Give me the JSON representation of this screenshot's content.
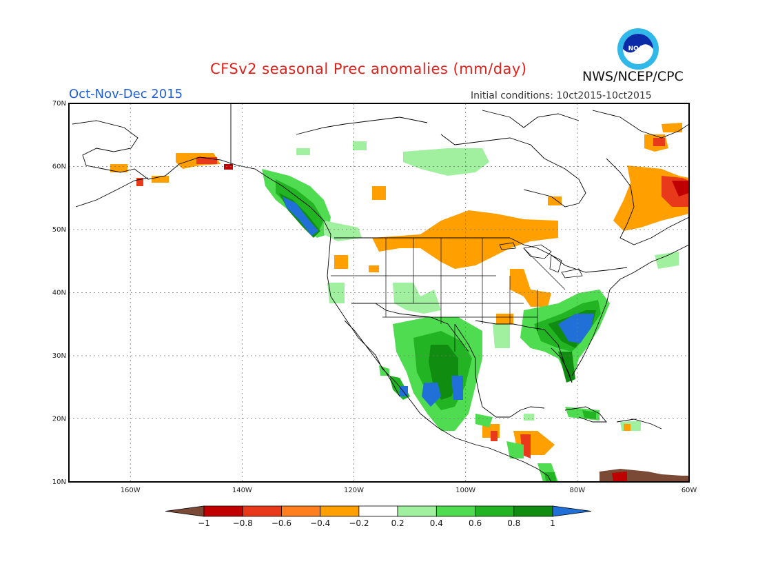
{
  "header": {
    "title": "CFSv2 seasonal Prec anomalies (mm/day)",
    "agency": "NWS/NCEP/CPC",
    "period": "Oct-Nov-Dec 2015",
    "initial_conditions": "Initial conditions: 10ct2015-10ct2015",
    "logo_text": "NOAA"
  },
  "axes": {
    "lat_ticks": [
      {
        "value": 70,
        "label": "70N"
      },
      {
        "value": 60,
        "label": "60N"
      },
      {
        "value": 50,
        "label": "50N"
      },
      {
        "value": 40,
        "label": "40N"
      },
      {
        "value": 30,
        "label": "30N"
      },
      {
        "value": 20,
        "label": "20N"
      },
      {
        "value": 10,
        "label": "10N"
      }
    ],
    "lon_ticks": [
      {
        "value": -160,
        "label": "160W"
      },
      {
        "value": -140,
        "label": "140W"
      },
      {
        "value": -120,
        "label": "120W"
      },
      {
        "value": -100,
        "label": "100W"
      },
      {
        "value": -80,
        "label": "80W"
      },
      {
        "value": -60,
        "label": "60W"
      }
    ],
    "lon_range": [
      -171,
      -60
    ],
    "lat_range": [
      10,
      70
    ],
    "grid": "dotted"
  },
  "colorbar": {
    "labels": [
      "−1",
      "−0.8",
      "−0.6",
      "−0.4",
      "−0.2",
      "0.2",
      "0.4",
      "0.6",
      "0.8",
      "1"
    ],
    "colors": [
      "#7a4a36",
      "#c00000",
      "#e83a1a",
      "#ff7f1e",
      "#ffa000",
      "#ffffff",
      "#a0f0a0",
      "#50dc50",
      "#22b422",
      "#108c10",
      "#2070d8"
    ]
  },
  "anomaly_regions": [
    {
      "name": "northwest-coast-wet",
      "level": 0.8,
      "color": "#108c10"
    },
    {
      "name": "mexico-wet",
      "level": 0.6,
      "color": "#22b422"
    },
    {
      "name": "southeast-us-wet",
      "level": 0.8,
      "color": "#108c10"
    },
    {
      "name": "northern-plains-dry",
      "level": -0.4,
      "color": "#ffa000"
    },
    {
      "name": "eastern-canada-dry",
      "level": -0.4,
      "color": "#ffa000"
    },
    {
      "name": "central-america-dry",
      "level": -0.6,
      "color": "#e83a1a"
    }
  ]
}
